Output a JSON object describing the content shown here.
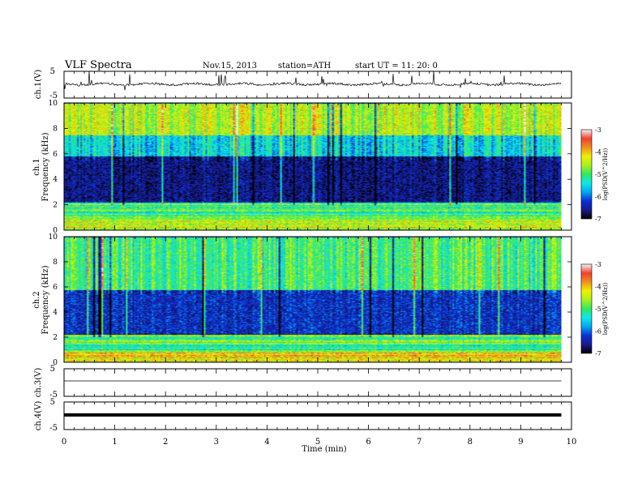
{
  "header": {
    "title": "VLF  Spectra",
    "date": "Nov.15, 2013",
    "station": "station=ATH",
    "start": "start  UT  =   11: 20: 0"
  },
  "colorbar": {
    "label": "log(PSD(V^2/Hz))",
    "ticks": [
      "-3",
      "-4",
      "-5",
      "-6",
      "-7"
    ],
    "colors": [
      "#000000",
      "#1a1a8c",
      "#0a30d8",
      "#00a8f0",
      "#10e8e8",
      "#30e860",
      "#a8f020",
      "#f0f000",
      "#f09020",
      "#f04030",
      "#f5f5f5"
    ]
  },
  "chart_data": [
    {
      "type": "line",
      "panel": "ch1-waveform",
      "ylabel": "ch.1(V)",
      "yticks": [
        "5",
        "-5"
      ],
      "ylim": [
        -5,
        5
      ],
      "trace": "noisy waveform centered near 0 V with occasional spikes"
    },
    {
      "type": "heatmap",
      "panel": "ch1-spectrogram",
      "ylabel": "ch.1 Frequency (kHz)",
      "yticks": [
        "0",
        "2",
        "4",
        "6",
        "8",
        "10"
      ],
      "ylim": [
        0,
        10
      ],
      "zlim": [
        -7,
        -3
      ],
      "bands": [
        {
          "from_khz": 0,
          "to_khz": 2.2,
          "level": -5.0,
          "note": "striped banding, red/yellow near 0-0.8 kHz"
        },
        {
          "from_khz": 2.2,
          "to_khz": 5.8,
          "level": -6.6,
          "note": "dark blue, quiet"
        },
        {
          "from_khz": 5.8,
          "to_khz": 7.5,
          "level": -5.5,
          "note": "green transition"
        },
        {
          "from_khz": 7.5,
          "to_khz": 10,
          "level": -4.5,
          "note": "yellow/red, strongest"
        }
      ]
    },
    {
      "type": "heatmap",
      "panel": "ch2-spectrogram",
      "ylabel": "ch.2 Frequency (kHz)",
      "yticks": [
        "0",
        "2",
        "4",
        "6",
        "8",
        "10"
      ],
      "ylim": [
        0,
        10
      ],
      "zlim": [
        -7,
        -3
      ],
      "bands": [
        {
          "from_khz": 0,
          "to_khz": 2.2,
          "level": -5.0,
          "note": "striped banding"
        },
        {
          "from_khz": 2.2,
          "to_khz": 5.8,
          "level": -6.3,
          "note": "blue"
        },
        {
          "from_khz": 5.8,
          "to_khz": 10,
          "level": -5.0,
          "note": "green with vertical spikes"
        }
      ]
    },
    {
      "type": "line",
      "panel": "ch3-waveform",
      "ylabel": "ch.3(V)",
      "yticks": [
        "5",
        "-5"
      ],
      "ylim": [
        -5,
        5
      ],
      "trace": "flat at about 0 V"
    },
    {
      "type": "line",
      "panel": "ch4-waveform",
      "ylabel": "ch.4(V)",
      "yticks": [
        "5",
        "-5"
      ],
      "ylim": [
        -5,
        5
      ],
      "trace": "thick flat line at about 0 V"
    }
  ],
  "xaxis": {
    "label": "Time  (min)",
    "ticks": [
      "0",
      "1",
      "2",
      "3",
      "4",
      "5",
      "6",
      "7",
      "8",
      "9",
      "10"
    ],
    "xlim": [
      0,
      10
    ],
    "data_end": 9.8
  }
}
